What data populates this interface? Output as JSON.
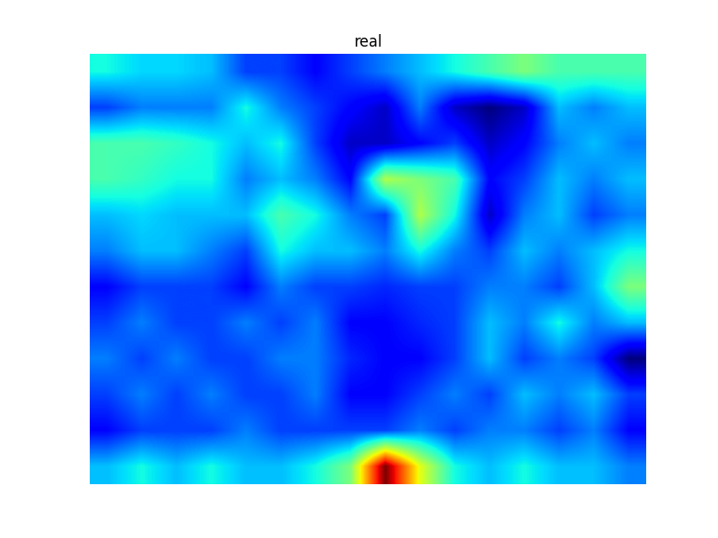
{
  "chart_data": {
    "type": "heatmap",
    "title": "real",
    "color": "jet",
    "tick_labels": false,
    "cells": [
      [
        0.45,
        0.42,
        0.42,
        0.4,
        0.3,
        0.3,
        0.25,
        0.3,
        0.35,
        0.4,
        0.45,
        0.5,
        0.55,
        0.5,
        0.5,
        0.5
      ],
      [
        0.3,
        0.35,
        0.35,
        0.35,
        0.45,
        0.35,
        0.3,
        0.25,
        0.2,
        0.35,
        0.2,
        0.15,
        0.2,
        0.4,
        0.35,
        0.4
      ],
      [
        0.5,
        0.5,
        0.48,
        0.45,
        0.4,
        0.45,
        0.3,
        0.2,
        0.2,
        0.25,
        0.3,
        0.2,
        0.25,
        0.35,
        0.4,
        0.35
      ],
      [
        0.5,
        0.48,
        0.45,
        0.45,
        0.35,
        0.4,
        0.35,
        0.25,
        0.6,
        0.55,
        0.5,
        0.25,
        0.3,
        0.4,
        0.35,
        0.4
      ],
      [
        0.4,
        0.42,
        0.4,
        0.4,
        0.4,
        0.5,
        0.45,
        0.35,
        0.3,
        0.6,
        0.45,
        0.2,
        0.35,
        0.4,
        0.3,
        0.35
      ],
      [
        0.35,
        0.4,
        0.4,
        0.35,
        0.3,
        0.45,
        0.4,
        0.4,
        0.35,
        0.45,
        0.35,
        0.3,
        0.4,
        0.35,
        0.4,
        0.45
      ],
      [
        0.25,
        0.3,
        0.3,
        0.3,
        0.25,
        0.35,
        0.3,
        0.3,
        0.28,
        0.3,
        0.3,
        0.35,
        0.35,
        0.3,
        0.4,
        0.55
      ],
      [
        0.3,
        0.35,
        0.3,
        0.3,
        0.35,
        0.3,
        0.35,
        0.25,
        0.25,
        0.28,
        0.3,
        0.4,
        0.35,
        0.45,
        0.35,
        0.4
      ],
      [
        0.35,
        0.3,
        0.35,
        0.3,
        0.3,
        0.35,
        0.35,
        0.28,
        0.25,
        0.25,
        0.3,
        0.4,
        0.3,
        0.35,
        0.3,
        0.15
      ],
      [
        0.3,
        0.35,
        0.3,
        0.35,
        0.3,
        0.3,
        0.35,
        0.25,
        0.25,
        0.3,
        0.35,
        0.3,
        0.4,
        0.35,
        0.4,
        0.3
      ],
      [
        0.25,
        0.3,
        0.3,
        0.3,
        0.35,
        0.3,
        0.3,
        0.3,
        0.3,
        0.35,
        0.3,
        0.35,
        0.35,
        0.3,
        0.35,
        0.25
      ],
      [
        0.4,
        0.45,
        0.4,
        0.45,
        0.4,
        0.4,
        0.45,
        0.55,
        0.95,
        0.65,
        0.45,
        0.4,
        0.45,
        0.4,
        0.4,
        0.35
      ]
    ]
  }
}
